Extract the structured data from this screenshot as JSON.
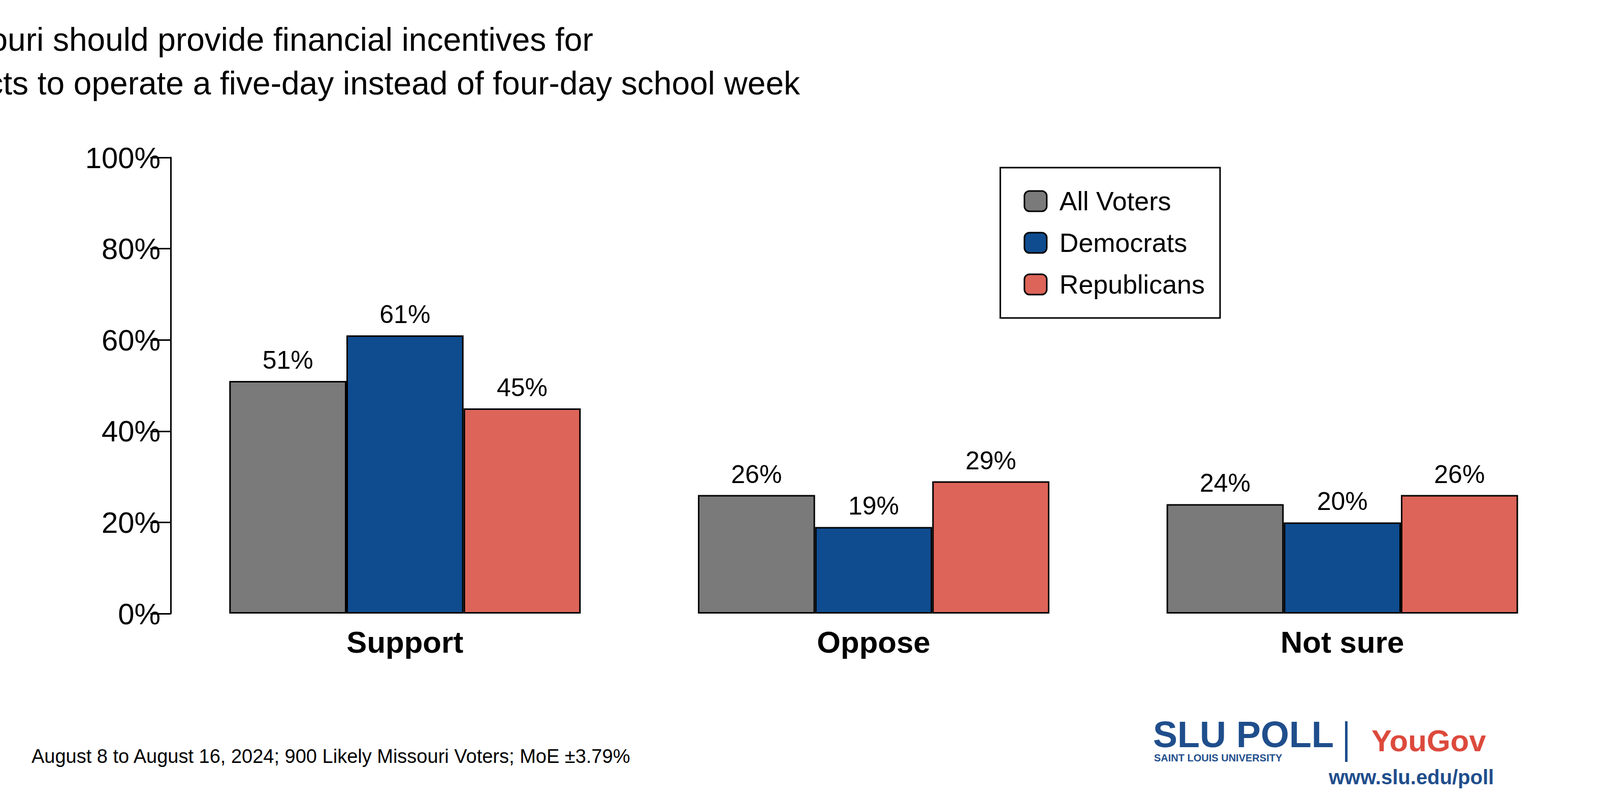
{
  "chart_data": {
    "type": "bar",
    "title": "The State of Missouri should provide financial incentives for\nteacher salaries for school districts to operate a five-day instead of four-day school week",
    "categories": [
      "Support",
      "Oppose",
      "Not sure"
    ],
    "series": [
      {
        "name": "All Voters",
        "color": "#7a7a7a",
        "values": [
          51,
          26,
          24
        ],
        "value_labels": [
          "51%",
          "26%",
          "24%"
        ]
      },
      {
        "name": "Democrats",
        "color": "#0f4c8f",
        "values": [
          61,
          19,
          20
        ],
        "value_labels": [
          "61%",
          "19%",
          "20%"
        ]
      },
      {
        "name": "Republicans",
        "color": "#dd6458",
        "values": [
          45,
          29,
          26
        ],
        "value_labels": [
          "45%",
          "29%",
          "26%"
        ]
      }
    ],
    "ylim": [
      0,
      100
    ],
    "yticks": [
      {
        "value": 0,
        "label": "0%"
      },
      {
        "value": 20,
        "label": "20%"
      },
      {
        "value": 40,
        "label": "40%"
      },
      {
        "value": 60,
        "label": "60%"
      },
      {
        "value": 80,
        "label": "80%"
      },
      {
        "value": 100,
        "label": "100%"
      }
    ],
    "grid": false,
    "legend": "top-right",
    "data_labels": true,
    "annotations": [
      "August 8 to August 16, 2024; 900 Likely Missouri Voters; MoE ±3.79%",
      "SLU POLL",
      "SAINT LOUIS UNIVERSITY",
      "YouGov",
      "www.slu.edu/poll"
    ]
  }
}
